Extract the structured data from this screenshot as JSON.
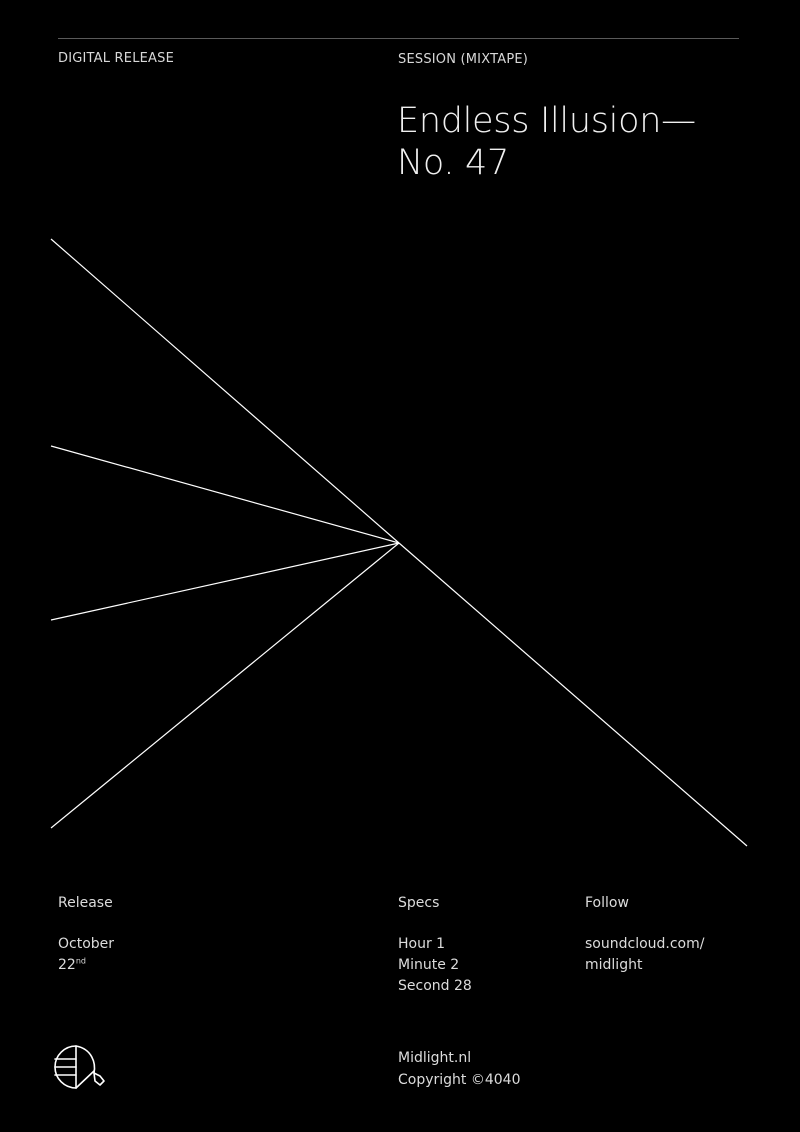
{
  "header": {
    "left_label": "DIGITAL RELEASE",
    "right_label": "SESSION (MIXTAPE)"
  },
  "title": {
    "line1": "Endless Illusion—",
    "line2": "No. 47"
  },
  "release": {
    "heading": "Release",
    "month": "October",
    "day": "22",
    "day_suffix": "nd"
  },
  "specs": {
    "heading": "Specs",
    "items": [
      "Hour 1",
      "Minute 2",
      "Second 28"
    ]
  },
  "follow": {
    "heading": "Follow",
    "line1": "soundcloud.com/",
    "line2": "midlight"
  },
  "footer": {
    "site": "Midlight.nl",
    "copyright": "Copyright ©4040"
  },
  "colors": {
    "background": "#000000",
    "foreground": "#ffffff",
    "rule": "#5a5a5a"
  },
  "logo": {
    "icon": "midlight-logo-icon"
  }
}
